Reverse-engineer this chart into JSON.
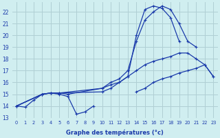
{
  "background_color": "#d0eef0",
  "grid_color": "#b0cfd4",
  "line_color": "#1a3aaa",
  "xlabel": "Graphe des températures (°c)",
  "xlim": [
    -0.5,
    23.5
  ],
  "ylim": [
    13,
    22.8
  ],
  "yticks": [
    13,
    14,
    15,
    16,
    17,
    18,
    19,
    20,
    21,
    22
  ],
  "xticks": [
    0,
    1,
    2,
    3,
    4,
    5,
    6,
    7,
    8,
    9,
    10,
    11,
    12,
    13,
    14,
    15,
    16,
    17,
    18,
    19,
    20,
    21,
    22,
    23
  ],
  "series": [
    {
      "x": [
        0,
        1,
        2,
        3,
        4,
        5,
        6,
        7,
        8,
        9
      ],
      "y": [
        14.0,
        13.9,
        14.5,
        15.0,
        15.1,
        15.0,
        14.8,
        13.3,
        13.5,
        14.0
      ]
    },
    {
      "x": [
        0,
        3,
        4,
        5,
        6,
        10,
        11,
        12,
        13,
        14,
        15,
        16,
        17,
        18,
        19,
        20,
        21,
        22,
        23
      ],
      "y": [
        14.0,
        15.0,
        15.1,
        15.1,
        15.0,
        15.5,
        15.8,
        16.0,
        16.5,
        17.0,
        17.5,
        17.8,
        18.0,
        18.2,
        18.5,
        18.5,
        18.0,
        17.5,
        16.5
      ]
    },
    {
      "x": [
        0,
        3,
        4,
        5,
        10,
        11,
        12,
        13,
        14,
        15,
        16,
        17,
        18,
        19,
        20,
        21
      ],
      "y": [
        14.0,
        15.0,
        15.1,
        15.1,
        15.5,
        16.0,
        16.3,
        17.0,
        19.5,
        21.3,
        22.0,
        22.5,
        22.2,
        21.0,
        19.5,
        19.0
      ]
    },
    {
      "x": [
        0,
        3,
        4,
        5,
        10,
        11,
        12,
        13,
        14,
        15,
        16,
        17,
        18,
        19
      ],
      "y": [
        14.0,
        15.0,
        15.1,
        15.1,
        15.2,
        15.5,
        16.0,
        16.5,
        20.0,
        22.2,
        22.5,
        22.3,
        21.5,
        19.5
      ]
    },
    {
      "x": [
        14,
        15,
        16,
        17,
        18,
        19,
        20,
        21,
        22,
        23
      ],
      "y": [
        15.2,
        15.5,
        16.0,
        16.3,
        16.5,
        16.8,
        17.0,
        17.2,
        17.5,
        16.5
      ]
    }
  ]
}
